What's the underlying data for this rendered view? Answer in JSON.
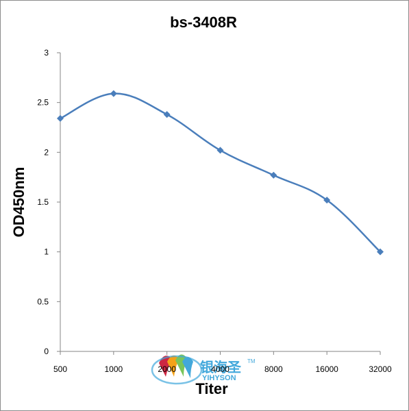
{
  "chart_data": {
    "type": "line",
    "title": "bs-3408R",
    "xlabel": "Titer",
    "ylabel": "OD450nm",
    "categories": [
      "500",
      "1000",
      "2000",
      "4000",
      "8000",
      "16000",
      "32000"
    ],
    "series": [
      {
        "values": [
          2.34,
          2.59,
          2.38,
          2.02,
          1.77,
          1.52,
          1.0
        ]
      }
    ],
    "ylim": [
      0,
      3
    ],
    "yticks": [
      "0",
      "0.5",
      "1",
      "1.5",
      "2",
      "2.5",
      "3"
    ],
    "line_color": "#4a7ebb",
    "marker": "diamond",
    "smooth": true,
    "grid": false
  },
  "watermark": {
    "chinese": "银海圣",
    "english": "YIHYSON",
    "mark": "TM",
    "colors": [
      "#c8102e",
      "#f39800",
      "#2e9fd8",
      "#6bbf4a"
    ]
  }
}
